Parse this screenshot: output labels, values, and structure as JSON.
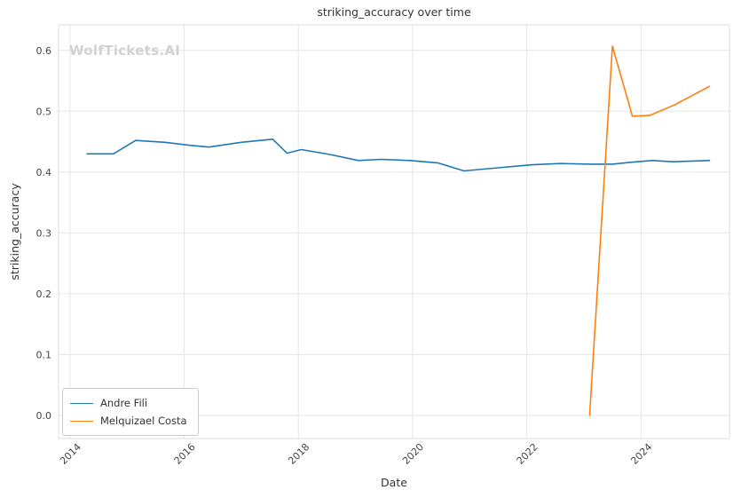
{
  "chart_data": {
    "type": "line",
    "title": "striking_accuracy over time",
    "xlabel": "Date",
    "ylabel": "striking_accuracy",
    "watermark": "WolfTickets.AI",
    "xlim": [
      2013.8,
      2025.55
    ],
    "ylim": [
      -0.038,
      0.642
    ],
    "x_ticks": [
      2014,
      2016,
      2018,
      2020,
      2022,
      2024
    ],
    "y_ticks": [
      0.0,
      0.1,
      0.2,
      0.3,
      0.4,
      0.5,
      0.6
    ],
    "grid": true,
    "legend_position": "lower left",
    "series": [
      {
        "name": "Andre Fili",
        "color": "#1f77b4",
        "points": [
          [
            2014.3,
            0.43
          ],
          [
            2014.76,
            0.43
          ],
          [
            2015.15,
            0.452
          ],
          [
            2015.66,
            0.449
          ],
          [
            2016.1,
            0.444
          ],
          [
            2016.43,
            0.441
          ],
          [
            2017.0,
            0.449
          ],
          [
            2017.55,
            0.454
          ],
          [
            2017.8,
            0.431
          ],
          [
            2018.05,
            0.437
          ],
          [
            2018.55,
            0.429
          ],
          [
            2019.05,
            0.419
          ],
          [
            2019.45,
            0.421
          ],
          [
            2019.95,
            0.419
          ],
          [
            2020.45,
            0.415
          ],
          [
            2020.9,
            0.402
          ],
          [
            2021.5,
            0.407
          ],
          [
            2022.1,
            0.412
          ],
          [
            2022.6,
            0.414
          ],
          [
            2023.1,
            0.413
          ],
          [
            2023.5,
            0.413
          ],
          [
            2023.8,
            0.416
          ],
          [
            2024.2,
            0.419
          ],
          [
            2024.55,
            0.417
          ],
          [
            2025.2,
            0.419
          ]
        ]
      },
      {
        "name": "Melquizael Costa",
        "color": "#ff7f0e",
        "points": [
          [
            2023.1,
            0.0
          ],
          [
            2023.5,
            0.607
          ],
          [
            2023.85,
            0.492
          ],
          [
            2024.15,
            0.493
          ],
          [
            2024.6,
            0.511
          ],
          [
            2025.2,
            0.541
          ]
        ]
      }
    ]
  }
}
